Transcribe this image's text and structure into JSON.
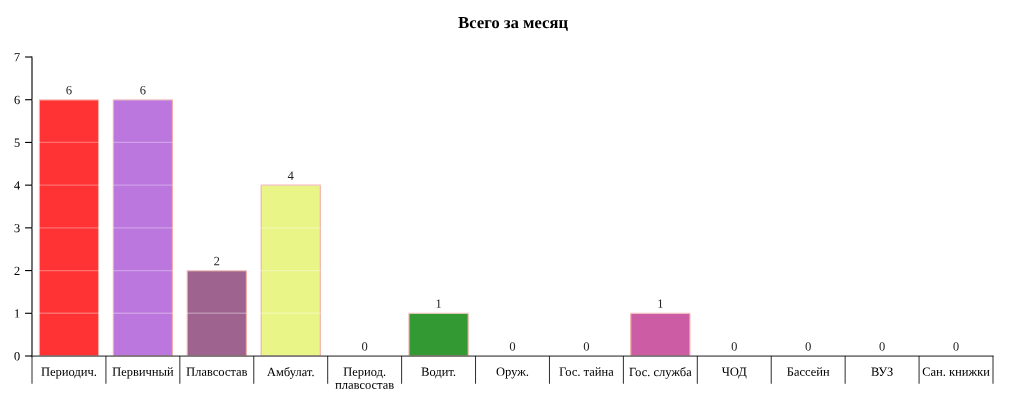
{
  "chart_data": {
    "type": "bar",
    "title": "Всего за месяц",
    "categories": [
      "Периодич.",
      "Первичный",
      "Плавсостав",
      "Амбулат.",
      "Период.\nплавсостав",
      "Водит.",
      "Оруж.",
      "Гос. тайна",
      "Гос. служба",
      "ЧОД",
      "Бассейн",
      "ВУЗ",
      "Сан. книжки"
    ],
    "values": [
      6,
      6,
      2,
      4,
      0,
      1,
      0,
      0,
      1,
      0,
      0,
      0,
      0
    ],
    "colors": [
      "#ff3333",
      "#bb77dd",
      "#9e648f",
      "#eaf587",
      null,
      "#339933",
      null,
      null,
      "#cc5ca3",
      null,
      null,
      null,
      null
    ],
    "ylim": [
      0,
      7
    ],
    "yticks": [
      0,
      1,
      2,
      3,
      4,
      5,
      6,
      7
    ],
    "grid": "y",
    "data_labels": true,
    "legend": false
  }
}
